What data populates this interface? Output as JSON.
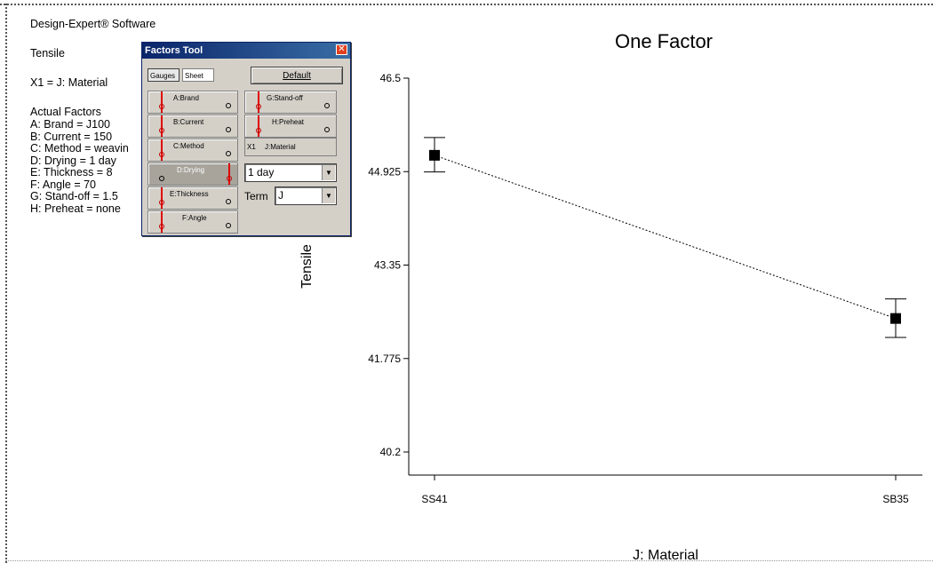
{
  "software": "Design-Expert® Software",
  "response": "Tensile",
  "x1_label": "X1 = J: Material",
  "actual_factors_heading": "Actual Factors",
  "actual_factors": [
    "A: Brand = J100",
    "B: Current = 150",
    "C: Method = weavin",
    "D: Drying = 1 day",
    "E: Thickness = 8",
    "F: Angle = 70",
    "G: Stand-off = 1.5",
    "H: Preheat = none"
  ],
  "factors_tool": {
    "title": "Factors Tool",
    "close_glyph": "✕",
    "gauges_tab": "Gauges",
    "sheet_tab": "Sheet",
    "default_button": "Default",
    "gauges": [
      {
        "label": "A:Brand",
        "active": false
      },
      {
        "label": "B:Current",
        "active": false
      },
      {
        "label": "C:Method",
        "active": false
      },
      {
        "label": "D:Drying",
        "active": true
      },
      {
        "label": "E:Thickness",
        "active": false
      },
      {
        "label": "F:Angle",
        "active": false
      },
      {
        "label": "G:Stand-off",
        "active": false
      },
      {
        "label": "H:Preheat",
        "active": false
      }
    ],
    "x1_tag": "X1",
    "x1_factor": "J:Material",
    "drying_value": "1 day",
    "term_label": "Term",
    "term_value": "J",
    "combo_arrow": "▼"
  },
  "chart_data": {
    "type": "line",
    "title": "One Factor",
    "xlabel": "J: Material",
    "ylabel": "Tensile",
    "categories": [
      "SS41",
      "SB35"
    ],
    "series": [
      {
        "values": [
          45.2,
          42.45
        ],
        "error_low": [
          44.92,
          42.13
        ],
        "error_high": [
          45.5,
          42.78
        ]
      }
    ],
    "yticks": [
      40.2,
      41.775,
      43.35,
      44.925,
      46.5
    ],
    "ytick_labels": [
      "40.2",
      "41.775",
      "43.35",
      "44.925",
      "46.5"
    ],
    "ylim": [
      40.2,
      46.5
    ],
    "line_style": "dotted",
    "grid": false
  }
}
